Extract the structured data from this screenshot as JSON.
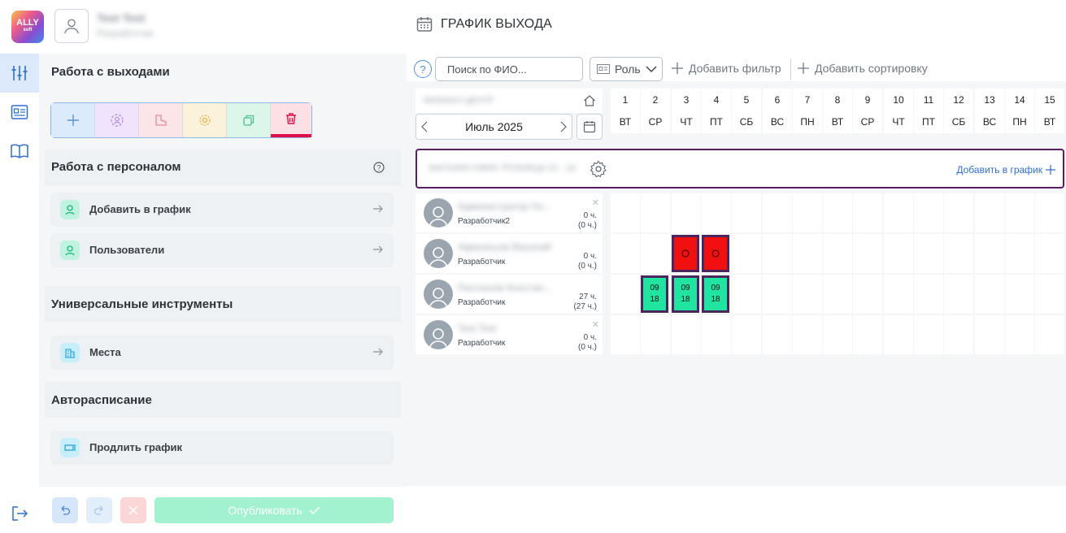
{
  "app": {
    "logo_text": "ALLY",
    "logo_sub": "soft"
  },
  "user": {
    "name": "Test Test",
    "role": "Разработчик"
  },
  "page": {
    "title": "ГРАФИК ВЫХОДА"
  },
  "sidebar": {
    "section_shifts": "Работа с выходами",
    "section_staff": "Работа с персоналом",
    "staff_items": [
      {
        "label": "Добавить в график",
        "icon": "user-icon"
      },
      {
        "label": "Пользователи",
        "icon": "user-icon"
      }
    ],
    "section_tools": "Универсальные инструменты",
    "tools_items": [
      {
        "label": "Места",
        "icon": "building-icon"
      }
    ],
    "section_auto": "Авторасписание",
    "auto_items": [
      {
        "label": "Продлить график",
        "icon": "extend-icon"
      }
    ],
    "publish_label": "Опубликовать"
  },
  "toolbar": {
    "search_placeholder": "Поиск по ФИО...",
    "role_label": "Роль",
    "add_filter": "Добавить фильтр",
    "add_sort": "Добавить сортировку"
  },
  "calendar": {
    "org_name": "ФИЛИАЛ ЦЕНТР",
    "month_label": "Июль 2025",
    "days": [
      {
        "n": "1",
        "w": "ВТ"
      },
      {
        "n": "2",
        "w": "СР"
      },
      {
        "n": "3",
        "w": "ЧТ"
      },
      {
        "n": "4",
        "w": "ПТ"
      },
      {
        "n": "5",
        "w": "СБ"
      },
      {
        "n": "6",
        "w": "ВС"
      },
      {
        "n": "7",
        "w": "ПН"
      },
      {
        "n": "8",
        "w": "ВТ"
      },
      {
        "n": "9",
        "w": "СР"
      },
      {
        "n": "10",
        "w": "ЧТ"
      },
      {
        "n": "11",
        "w": "ПТ"
      },
      {
        "n": "12",
        "w": "СБ"
      },
      {
        "n": "13",
        "w": "ВС"
      },
      {
        "n": "14",
        "w": "ПН"
      },
      {
        "n": "15",
        "w": "ВТ"
      }
    ],
    "group_name": "МАГАЗИН ОФИС РОЗНИЦА 01 - 16",
    "add_to_schedule": "Добавить в график",
    "employees": [
      {
        "name": "Администратор Но...",
        "role": "Разработчик2",
        "hours": "0 ч.",
        "hours_sub": "(0 ч.)",
        "shifts": []
      },
      {
        "name": "Афанасьев Василий",
        "role": "Разработчик",
        "hours": "0 ч.",
        "hours_sub": "(0 ч.)",
        "shifts": [
          {
            "day": 3,
            "type": "sick",
            "color": "#f01010"
          },
          {
            "day": 4,
            "type": "sick",
            "color": "#f01010"
          }
        ]
      },
      {
        "name": "Рассказов Констан...",
        "role": "Разработчик",
        "hours": "27 ч.",
        "hours_sub": "(27 ч.)",
        "shifts": [
          {
            "day": 2,
            "type": "work",
            "start": "09",
            "end": "18",
            "color": "#1fe5a0"
          },
          {
            "day": 3,
            "type": "work",
            "start": "09",
            "end": "18",
            "color": "#1fe5a0"
          },
          {
            "day": 4,
            "type": "work",
            "start": "09",
            "end": "18",
            "color": "#1fe5a0"
          }
        ]
      },
      {
        "name": "Test Test",
        "role": "Разработчик",
        "hours": "0 ч.",
        "hours_sub": "(0 ч.)",
        "shifts": []
      }
    ]
  }
}
